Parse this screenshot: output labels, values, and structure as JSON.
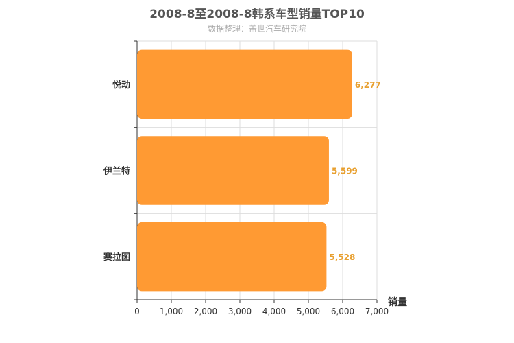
{
  "chart_data": {
    "type": "bar",
    "orientation": "horizontal",
    "title": "2008-8至2008-8韩系车型销量TOP10",
    "subtitle": "数据整理：盖世汽车研究院",
    "categories": [
      "悦动",
      "伊兰特",
      "赛拉图"
    ],
    "values": [
      6277,
      5599,
      5528
    ],
    "value_labels": [
      "6,277",
      "5,599",
      "5,528"
    ],
    "xlabel": "销量",
    "ylabel": "",
    "xlim": [
      0,
      7000
    ],
    "x_ticks": [
      0,
      1000,
      2000,
      3000,
      4000,
      5000,
      6000,
      7000
    ],
    "x_tick_labels": [
      "0",
      "1,000",
      "2,000",
      "3,000",
      "4,000",
      "5,000",
      "6,000",
      "7,000"
    ],
    "grid": true,
    "bar_color": "#FF9A33",
    "value_label_color": "#E8A030"
  }
}
